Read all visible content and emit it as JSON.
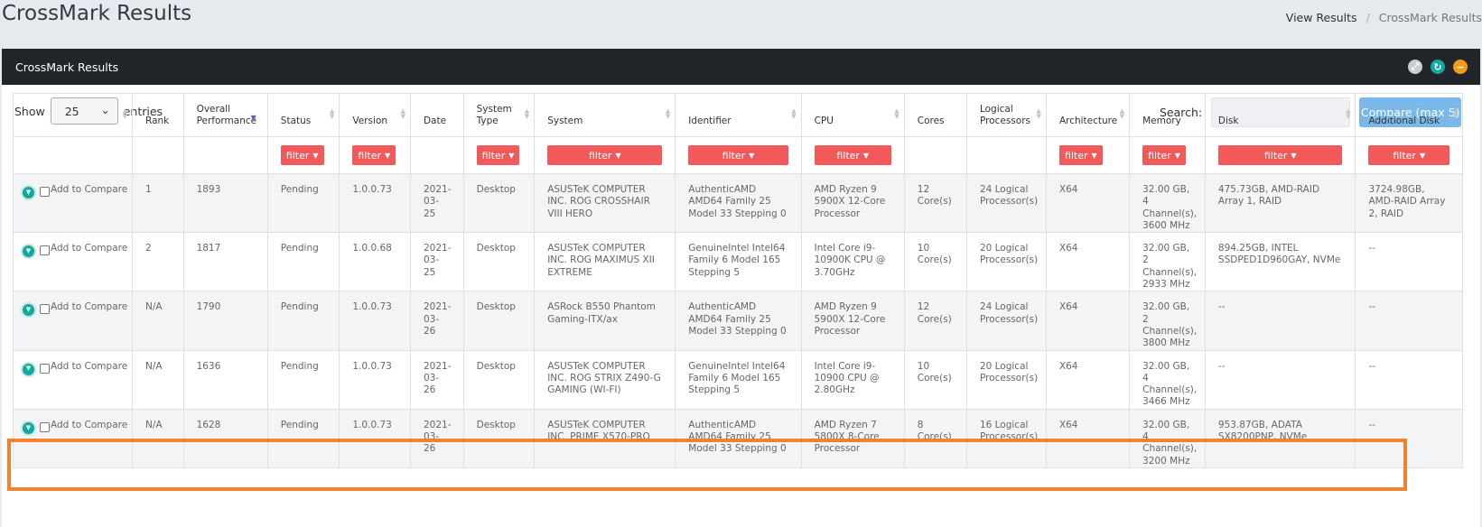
{
  "page": {
    "title": "CrossMark Results"
  },
  "breadcrumb": {
    "parent": "View Results",
    "separator": "/",
    "current": "CrossMark Results"
  },
  "panel": {
    "title": "CrossMark Results",
    "tools": [
      "expand-icon",
      "reload-icon",
      "collapse-icon"
    ]
  },
  "colors": {
    "header": "#22262b",
    "accent": "#10aaa0",
    "filter": "#f05a5a",
    "compare": "#7ab8e9",
    "highlight": "#f0812e"
  },
  "controls": {
    "show_label": "Show",
    "entries_value": "25",
    "entries_label": "entries",
    "search_label": "Search:",
    "compare_button": "Compare (max 5)"
  },
  "columns": [
    "",
    "Rank",
    "Overall Performance",
    "Status",
    "Version",
    "Date",
    "System Type",
    "System",
    "Identifier",
    "CPU",
    "Cores",
    "Logical Processors",
    "Architecture",
    "Memory",
    "Disk",
    "Additional Disk"
  ],
  "filter_label": "filter",
  "rows": [
    {
      "compare": "Add to Compare",
      "rank": "1",
      "performance": "1893",
      "status": "Pending",
      "version": "1.0.0.73",
      "date": "2021-03-25",
      "type": "Desktop",
      "system": "ASUSTeK COMPUTER INC. ROG CROSSHAIR VIII HERO",
      "identifier": "AuthenticAMD AMD64 Family 25 Model 33 Stepping 0",
      "cpu": "AMD Ryzen 9 5900X 12-Core Processor",
      "cores": "12 Core(s)",
      "logical": "24 Logical Processor(s)",
      "arch": "X64",
      "memory": "32.00 GB, 4 Channel(s), 3600 MHz",
      "disk": "475.73GB, AMD-RAID Array 1, RAID",
      "add_disk": "3724.98GB, AMD-RAID Array 2, RAID"
    },
    {
      "compare": "Add to Compare",
      "rank": "2",
      "performance": "1817",
      "status": "Pending",
      "version": "1.0.0.68",
      "date": "2021-03-25",
      "type": "Desktop",
      "system": "ASUSTeK COMPUTER INC. ROG MAXIMUS XII EXTREME",
      "identifier": "GenuineIntel Intel64 Family 6 Model 165 Stepping 5",
      "cpu": "Intel Core i9-10900K CPU @ 3.70GHz",
      "cores": "10 Core(s)",
      "logical": "20 Logical Processor(s)",
      "arch": "X64",
      "memory": "32.00 GB, 2 Channel(s), 2933 MHz",
      "disk": "894.25GB, INTEL SSDPED1D960GAY, NVMe",
      "add_disk": "--"
    },
    {
      "compare": "Add to Compare",
      "rank": "N/A",
      "performance": "1790",
      "status": "Pending",
      "version": "1.0.0.73",
      "date": "2021-03-26",
      "type": "Desktop",
      "system": "ASRock B550 Phantom Gaming-ITX/ax",
      "identifier": "AuthenticAMD AMD64 Family 25 Model 33 Stepping 0",
      "cpu": "AMD Ryzen 9 5900X 12-Core Processor",
      "cores": "12 Core(s)",
      "logical": "24 Logical Processor(s)",
      "arch": "X64",
      "memory": "32.00 GB, 2 Channel(s), 3800 MHz",
      "disk": "--",
      "add_disk": "--"
    },
    {
      "compare": "Add to Compare",
      "rank": "N/A",
      "performance": "1636",
      "status": "Pending",
      "version": "1.0.0.73",
      "date": "2021-03-26",
      "type": "Desktop",
      "system": "ASUSTeK COMPUTER INC. ROG STRIX Z490-G GAMING (WI-FI)",
      "identifier": "GenuineIntel Intel64 Family 6 Model 165 Stepping 5",
      "cpu": "Intel Core i9-10900 CPU @ 2.80GHz",
      "cores": "10 Core(s)",
      "logical": "20 Logical Processor(s)",
      "arch": "X64",
      "memory": "32.00 GB, 4 Channel(s), 3466 MHz",
      "disk": "--",
      "add_disk": "--"
    },
    {
      "compare": "Add to Compare",
      "rank": "N/A",
      "performance": "1628",
      "status": "Pending",
      "version": "1.0.0.73",
      "date": "2021-03-26",
      "type": "Desktop",
      "system": "ASUSTeK COMPUTER INC. PRIME X570-PRO",
      "identifier": "AuthenticAMD AMD64 Family 25 Model 33 Stepping 0",
      "cpu": "AMD Ryzen 7 5800X 8-Core Processor",
      "cores": "8 Core(s)",
      "logical": "16 Logical Processor(s)",
      "arch": "X64",
      "memory": "32.00 GB, 4 Channel(s), 3200 MHz",
      "disk": "953.87GB, ADATA SX8200PNP, NVMe",
      "add_disk": "--"
    }
  ]
}
